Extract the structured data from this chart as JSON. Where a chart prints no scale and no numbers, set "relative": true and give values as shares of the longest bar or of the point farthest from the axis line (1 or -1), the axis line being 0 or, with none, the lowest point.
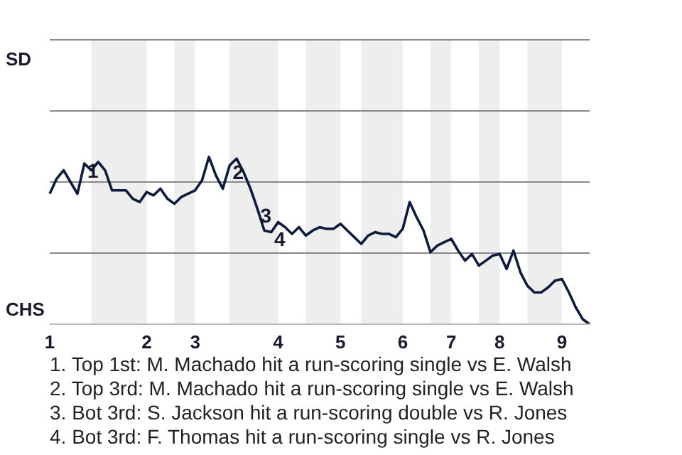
{
  "chart_data": {
    "type": "line",
    "relative": true,
    "categories": [
      "1",
      null,
      null,
      null,
      null,
      null,
      null,
      null,
      null,
      null,
      null,
      null,
      null,
      null,
      "2",
      null,
      null,
      null,
      null,
      null,
      null,
      "3",
      null,
      null,
      null,
      null,
      null,
      null,
      null,
      null,
      null,
      null,
      null,
      "4",
      null,
      null,
      null,
      null,
      null,
      null,
      null,
      null,
      "5",
      null,
      null,
      null,
      null,
      null,
      null,
      null,
      null,
      "6",
      null,
      null,
      null,
      null,
      null,
      null,
      "7",
      null,
      null,
      null,
      null,
      null,
      null,
      "8",
      null,
      null,
      null,
      null,
      null,
      null,
      null,
      null,
      "9",
      null,
      null,
      null,
      null
    ],
    "series": [
      {
        "color": "#0d1b3e",
        "values": [
          0.78,
          0.87,
          0.92,
          0.85,
          0.78,
          0.96,
          0.92,
          0.97,
          0.92,
          0.8,
          0.8,
          0.8,
          0.75,
          0.73,
          0.79,
          0.77,
          0.81,
          0.75,
          0.72,
          0.76,
          0.78,
          0.8,
          0.86,
          1,
          0.89,
          0.81,
          0.95,
          0.99,
          0.91,
          0.81,
          0.69,
          0.56,
          0.55,
          0.61,
          0.58,
          0.54,
          0.58,
          0.53,
          0.56,
          0.58,
          0.57,
          0.57,
          0.6,
          0.56,
          0.52,
          0.48,
          0.53,
          0.55,
          0.54,
          0.54,
          0.52,
          0.57,
          0.73,
          0.64,
          0.56,
          0.43,
          0.47,
          0.49,
          0.51,
          0.44,
          0.38,
          0.42,
          0.35,
          0.38,
          0.41,
          0.42,
          0.33,
          0.44,
          0.31,
          0.23,
          0.19,
          0.19,
          0.22,
          0.26,
          0.27,
          0.19,
          0.1,
          0.03,
          0
        ]
      }
    ],
    "marker": "none",
    "line_style": "solid",
    "ref_lines": [
      {
        "axis": "y",
        "value": 0.425,
        "color": "#888888"
      },
      {
        "axis": "y",
        "value": 0.85,
        "color": "#888888"
      },
      {
        "axis": "y",
        "value": 1.275,
        "color": "#888888"
      },
      {
        "axis": "y",
        "value": 1.7,
        "color": "#888888"
      }
    ],
    "annotations": [
      "SD",
      "CHS",
      {
        "text": "1",
        "y": 0.96
      },
      {
        "text": "2",
        "y": 0.95
      },
      {
        "text": "3",
        "y": 0.69
      },
      {
        "text": "4",
        "y": 0.55
      },
      "1. Top 1st: M. Machado hit a run-scoring single vs E. Walsh",
      "2. Top 3rd: M. Machado hit a run-scoring single vs E. Walsh",
      "3. Bot 3rd: S. Jackson hit a run-scoring double vs R. Jones",
      "4. Bot 3rd: F. Thomas hit a run-scoring single vs R. Jones"
    ]
  }
}
